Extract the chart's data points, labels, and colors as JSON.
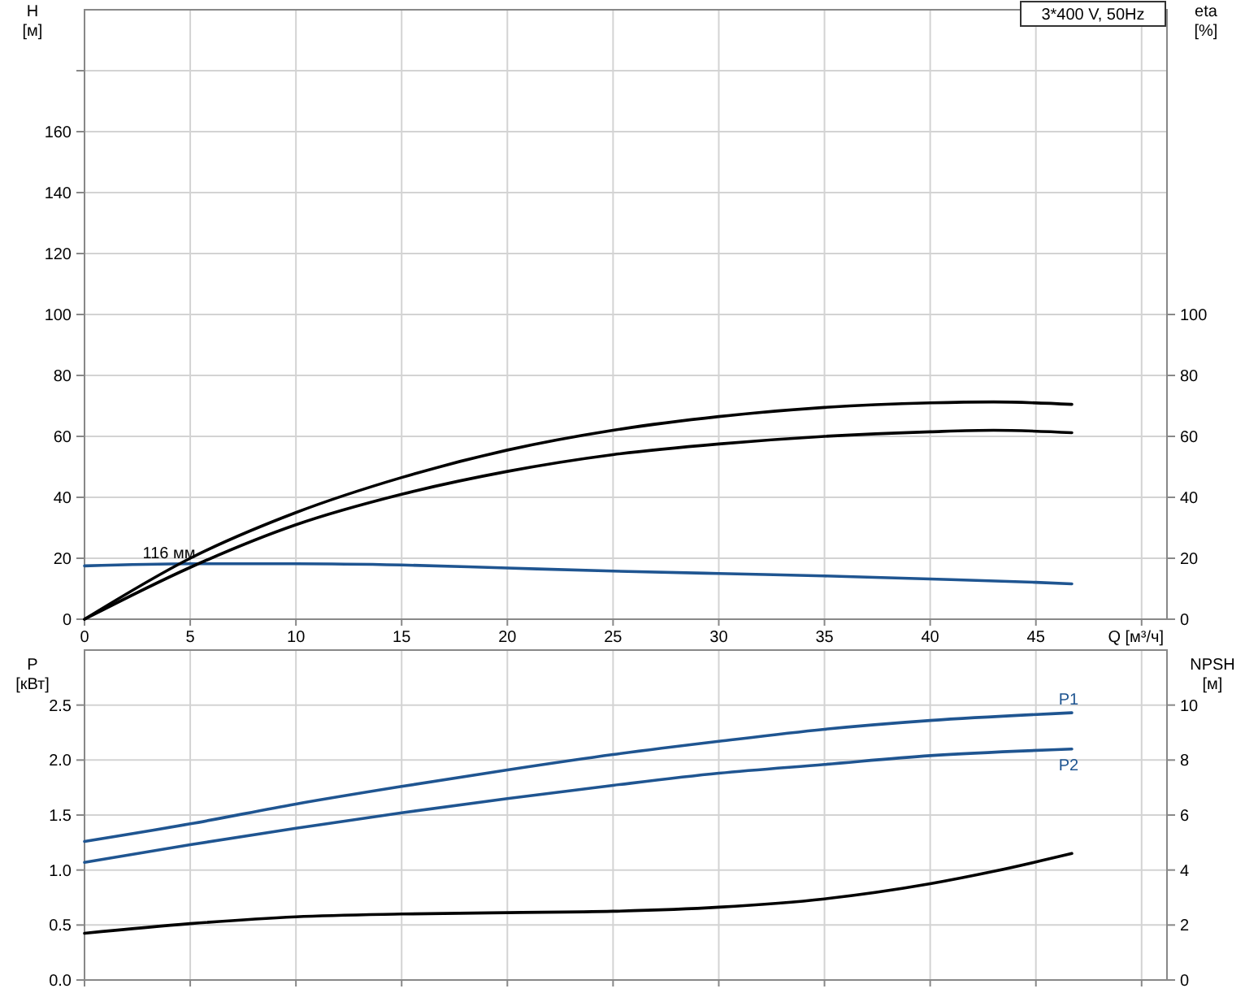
{
  "chart_data": [
    {
      "type": "line",
      "title": "3*400 V, 50Hz",
      "xlabel": "Q [м³/ч]",
      "ylabel": "H [м]",
      "y2label": "eta [%]",
      "xlim": [
        0,
        51.2
      ],
      "xticks": [
        0,
        5,
        10,
        15,
        20,
        25,
        30,
        35,
        40,
        45,
        {
          "value": 50,
          "label": null
        }
      ],
      "ylim": [
        0,
        200
      ],
      "yticks": [
        0,
        20,
        40,
        60,
        80,
        100,
        120,
        140,
        160,
        {
          "value": 180,
          "label": null
        }
      ],
      "y2lim": [
        0,
        200
      ],
      "y2ticks": [
        0,
        20,
        40,
        60,
        80,
        100
      ],
      "grid": true,
      "annotations": [
        {
          "text": "116 мм",
          "x": 4,
          "y": 18
        }
      ],
      "series": [
        {
          "color": "#1f5591",
          "x": [
            0,
            5,
            10,
            15,
            20,
            25,
            30,
            35,
            40,
            45,
            46.7
          ],
          "values": [
            17.5,
            18.2,
            18.2,
            17.8,
            16.8,
            15.8,
            15,
            14.2,
            13.2,
            12.1,
            11.6
          ]
        },
        {
          "color": "#000000",
          "axis": "y2",
          "x": [
            0,
            5,
            10,
            15,
            20,
            25,
            30,
            35,
            40,
            43,
            46.7
          ],
          "values": [
            0,
            20,
            35,
            46.5,
            55.5,
            62,
            66.5,
            69.5,
            71,
            71.3,
            70.5
          ]
        },
        {
          "color": "#000000",
          "axis": "y2",
          "x": [
            0,
            5,
            10,
            15,
            20,
            25,
            30,
            35,
            40,
            43,
            46.7
          ],
          "values": [
            0,
            17,
            31,
            41,
            48.5,
            54,
            57.5,
            60,
            61.5,
            62,
            61.2
          ]
        }
      ]
    },
    {
      "type": "line",
      "ylabel": "P [кВт]",
      "y2label": "NPSH [м]",
      "xlim": [
        0,
        51.2
      ],
      "xticks": [
        0,
        5,
        10,
        15,
        20,
        25,
        30,
        35,
        40,
        45,
        50
      ],
      "tick_labels": "y",
      "ylim": [
        0,
        3
      ],
      "yticks": [
        {
          "value": 0,
          "label": "0.0"
        },
        0.5,
        {
          "value": 1,
          "label": "1.0"
        },
        1.5,
        {
          "value": 2,
          "label": "2.0"
        },
        2.5
      ],
      "y2lim": [
        0,
        12
      ],
      "y2ticks": [
        0,
        2,
        4,
        6,
        8,
        10
      ],
      "grid": true,
      "series": [
        {
          "name": "P1",
          "color": "#1f5591",
          "x": [
            0,
            5,
            10,
            15,
            20,
            25,
            30,
            35,
            40,
            46.7
          ],
          "values": [
            1.26,
            1.42,
            1.6,
            1.76,
            1.91,
            2.05,
            2.17,
            2.28,
            2.36,
            2.43
          ]
        },
        {
          "name": "P2",
          "color": "#1f5591",
          "x": [
            0,
            5,
            10,
            15,
            20,
            25,
            30,
            35,
            40,
            46.7
          ],
          "values": [
            1.07,
            1.23,
            1.38,
            1.52,
            1.65,
            1.77,
            1.88,
            1.96,
            2.04,
            2.1
          ]
        },
        {
          "color": "#000000",
          "axis": "y2",
          "x": [
            0,
            5,
            10,
            15,
            20,
            25,
            30,
            35,
            40,
            43,
            46.7
          ],
          "values": [
            1.7,
            2.05,
            2.3,
            2.4,
            2.45,
            2.5,
            2.65,
            2.95,
            3.5,
            3.95,
            4.6
          ]
        }
      ]
    }
  ]
}
